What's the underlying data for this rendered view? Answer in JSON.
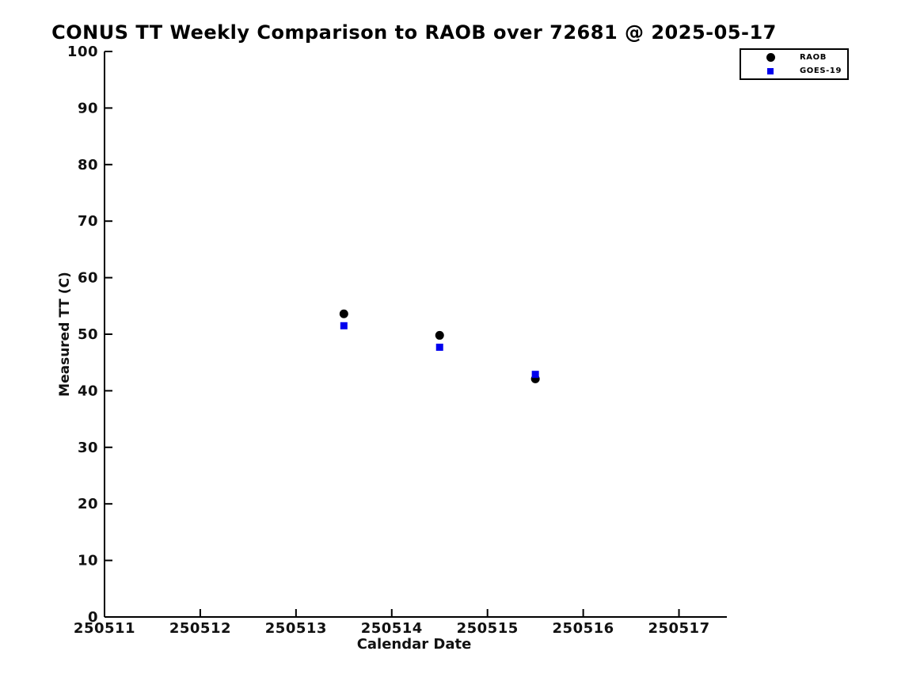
{
  "title": "CONUS TT Weekly Comparison to RAOB over 72681 @ 2025-05-17",
  "chart_data": {
    "type": "scatter",
    "title": "CONUS TT Weekly Comparison to RAOB over 72681 @ 2025-05-17",
    "xlabel": "Calendar Date",
    "ylabel": "Measured TT (C)",
    "xlim": [
      250511,
      250517.5
    ],
    "ylim": [
      0,
      100
    ],
    "xticks": [
      250511,
      250512,
      250513,
      250514,
      250515,
      250516,
      250517
    ],
    "yticks": [
      0,
      10,
      20,
      30,
      40,
      50,
      60,
      70,
      80,
      90,
      100
    ],
    "grid": false,
    "legend_position": "top-right",
    "series": [
      {
        "name": "RAOB",
        "marker": "circle",
        "color": "#000000",
        "x": [
          250513.5,
          250514.5,
          250515.5
        ],
        "y": [
          53.6,
          49.8,
          42.1
        ]
      },
      {
        "name": "GOES-19",
        "marker": "square",
        "color": "#0000ee",
        "x": [
          250513.5,
          250514.5,
          250515.5
        ],
        "y": [
          51.5,
          47.7,
          42.9
        ]
      }
    ]
  }
}
